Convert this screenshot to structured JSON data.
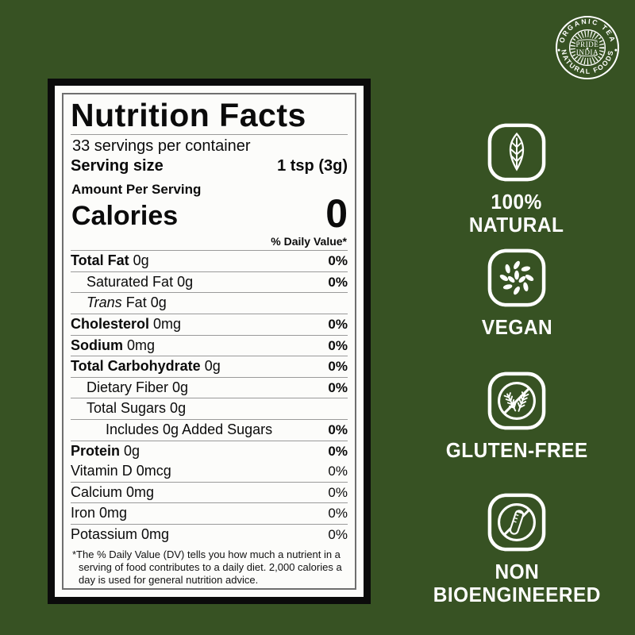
{
  "colors": {
    "background_green": "#375223",
    "label_black": "#0b0b0b",
    "label_paper": "#fcfcfa",
    "rule_gray": "#9a9a9a",
    "white": "#ffffff"
  },
  "logo": {
    "top_text": "ORGANIC TEA",
    "bottom_text": "NATURAL FOODS",
    "center_line1": "PRIDE",
    "center_line2": "INDIA"
  },
  "label": {
    "title": "Nutrition Facts",
    "servings_per_container": "33 servings per container",
    "serving_size_label": "Serving size",
    "serving_size_value": "1 tsp (3g)",
    "amount_per_serving": "Amount Per Serving",
    "calories_label": "Calories",
    "calories_value": "0",
    "daily_value_header": "% Daily Value*",
    "rows": [
      {
        "bold": "Total Fat",
        "text": " 0g",
        "percent": "0%",
        "percent_bold": true,
        "indent": 0
      },
      {
        "text": "Saturated Fat 0g",
        "percent": "0%",
        "percent_bold": true,
        "indent": 1
      },
      {
        "italic": "Trans",
        "text": " Fat 0g",
        "percent": "",
        "indent": 1
      },
      {
        "bold": "Cholesterol",
        "text": " 0mg",
        "percent": "0%",
        "percent_bold": true,
        "indent": 0
      },
      {
        "bold": "Sodium",
        "text": " 0mg",
        "percent": "0%",
        "percent_bold": true,
        "indent": 0
      },
      {
        "bold": "Total Carbohydrate",
        "text": " 0g",
        "percent": "0%",
        "percent_bold": true,
        "indent": 0
      },
      {
        "text": "Dietary Fiber 0g",
        "percent": "0%",
        "percent_bold": true,
        "indent": 1
      },
      {
        "text": "Total Sugars 0g",
        "percent": "",
        "indent": 1
      },
      {
        "text": "Includes 0g Added Sugars",
        "percent": "0%",
        "percent_bold": true,
        "indent": 2
      },
      {
        "bold": "Protein",
        "text": " 0g",
        "percent": "0%",
        "percent_bold": true,
        "indent": 0
      }
    ],
    "vitamins": [
      {
        "text": "Vitamin D 0mcg",
        "percent": "0%"
      },
      {
        "text": "Calcium 0mg",
        "percent": "0%"
      },
      {
        "text": "Iron 0mg",
        "percent": "0%"
      },
      {
        "text": "Potassium 0mg",
        "percent": "0%"
      }
    ],
    "footnote": "*The % Daily Value (DV) tells you how much a nutrient in a serving of food contributes to a daily diet. 2,000 calories a day is used for general nutrition advice."
  },
  "badges": [
    {
      "icon": "leaf-icon",
      "label": "100%\nNATURAL"
    },
    {
      "icon": "leaf-circle-icon",
      "label": "VEGAN"
    },
    {
      "icon": "no-wheat-icon",
      "label": "GLUTEN-FREE"
    },
    {
      "icon": "no-test-tube-icon",
      "label": "NON\nBIOENGINEERED"
    }
  ]
}
